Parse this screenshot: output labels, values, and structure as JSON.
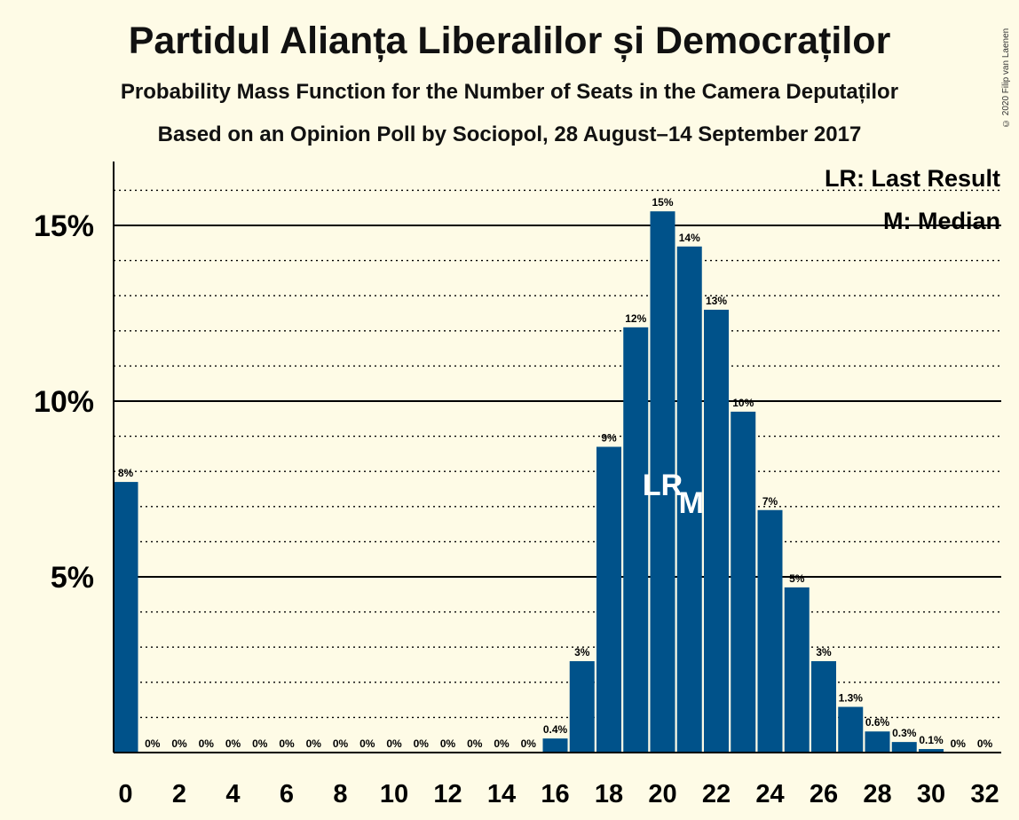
{
  "chart_data": {
    "type": "bar",
    "title": "Partidul Alianța Liberalilor și Democraților",
    "subtitle": "Probability Mass Function for the Number of Seats in the Camera Deputaților",
    "subtitle2": "Based on an Opinion Poll by Sociopol, 28 August–14 September 2017",
    "copyright": "© 2020 Filip van Laenen",
    "x": [
      0,
      1,
      2,
      3,
      4,
      5,
      6,
      7,
      8,
      9,
      10,
      11,
      12,
      13,
      14,
      15,
      16,
      17,
      18,
      19,
      20,
      21,
      22,
      23,
      24,
      25,
      26,
      27,
      28,
      29,
      30,
      31,
      32
    ],
    "values": [
      7.7,
      0,
      0,
      0,
      0,
      0,
      0,
      0,
      0,
      0,
      0,
      0,
      0,
      0,
      0,
      0,
      0.4,
      2.6,
      8.7,
      12.1,
      15.4,
      14.4,
      12.6,
      9.7,
      6.9,
      4.7,
      2.6,
      1.3,
      0.6,
      0.3,
      0.1,
      0,
      0
    ],
    "data_labels": [
      "8%",
      "0%",
      "0%",
      "0%",
      "0%",
      "0%",
      "0%",
      "0%",
      "0%",
      "0%",
      "0%",
      "0%",
      "0%",
      "0%",
      "0%",
      "0%",
      "0.4%",
      "3%",
      "9%",
      "12%",
      "15%",
      "14%",
      "13%",
      "10%",
      "7%",
      "5%",
      "3%",
      "1.3%",
      "0.6%",
      "0.3%",
      "0.1%",
      "0%",
      "0%"
    ],
    "x_ticks": [
      0,
      2,
      4,
      6,
      8,
      10,
      12,
      14,
      16,
      18,
      20,
      22,
      24,
      26,
      28,
      30,
      32
    ],
    "y_ticks": [
      {
        "value": 5,
        "label": "5%"
      },
      {
        "value": 10,
        "label": "10%"
      },
      {
        "value": 15,
        "label": "15%"
      }
    ],
    "ylim": [
      0,
      16.8
    ],
    "grid": true,
    "bar_color": "#00528a",
    "last_result_seat": 20,
    "median_seat": 21,
    "markers": {
      "last_result": "LR",
      "median": "M"
    },
    "legend": [
      {
        "key": "LR",
        "text": "LR: Last Result"
      },
      {
        "key": "M",
        "text": "M: Median"
      }
    ],
    "legend_position": "top-right"
  }
}
